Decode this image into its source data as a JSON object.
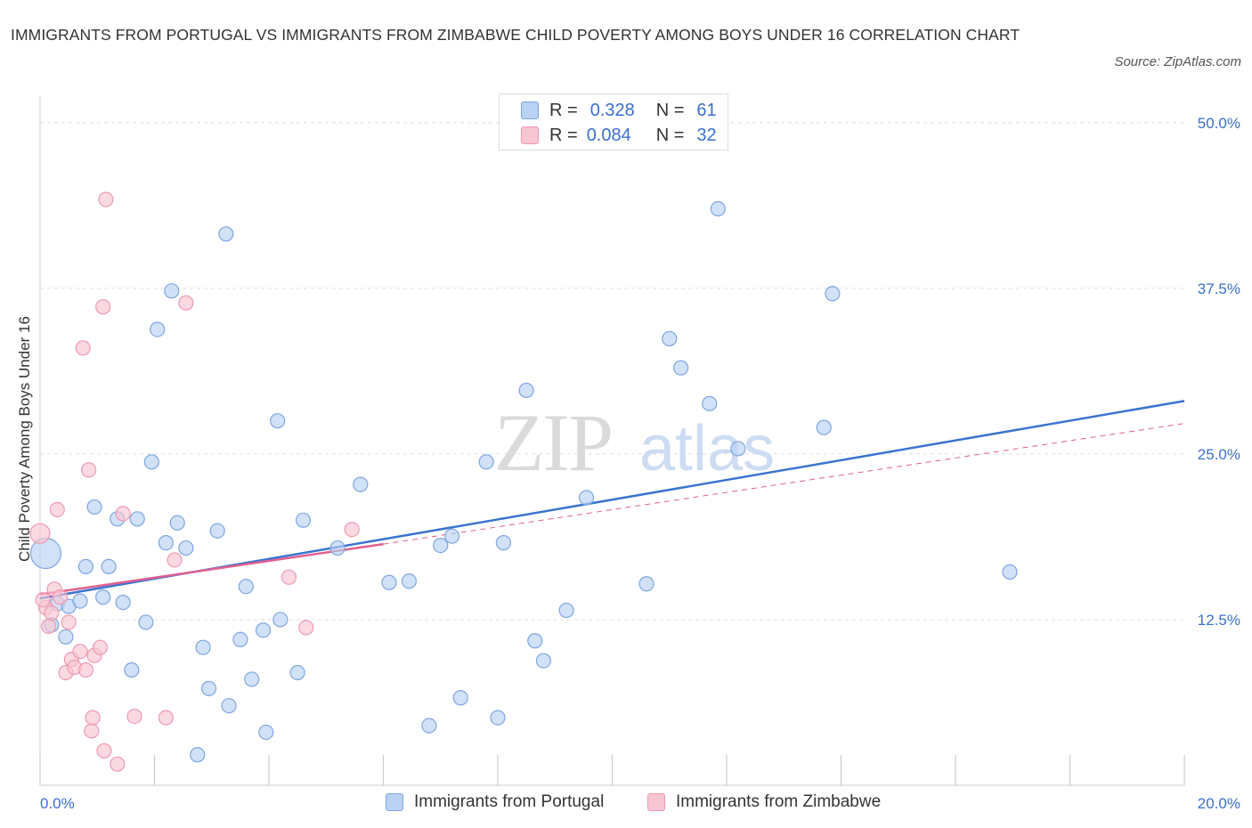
{
  "title": "IMMIGRANTS FROM PORTUGAL VS IMMIGRANTS FROM ZIMBABWE CHILD POVERTY AMONG BOYS UNDER 16 CORRELATION CHART",
  "source": "Source: ZipAtlas.com",
  "watermark": {
    "zip": "ZIP",
    "atlas": "atlas"
  },
  "legend": {
    "r_label": "R =",
    "n_label": "N =",
    "rows": [
      {
        "r": "0.328",
        "n": "61"
      },
      {
        "r": "0.084",
        "n": "32"
      }
    ]
  },
  "colors": {
    "portugal_fill": "#b9d1f2",
    "portugal_stroke": "#7ea6e0",
    "portugal_line": "#3a74d0",
    "zimbabwe_fill": "#f7c5d3",
    "zimbabwe_stroke": "#ee9ab2",
    "zimbabwe_line": "#e06090",
    "axis_text": "#3a6fd0",
    "grid": "#dddddd"
  },
  "chart_data": {
    "type": "scatter",
    "title": "IMMIGRANTS FROM PORTUGAL VS IMMIGRANTS FROM ZIMBABWE CHILD POVERTY AMONG BOYS UNDER 16 CORRELATION CHART",
    "xlabel": "",
    "ylabel": "Child Poverty Among Boys Under 16",
    "xlim": [
      0,
      20
    ],
    "ylim": [
      0,
      52
    ],
    "x_tick_labels": [
      "0.0%",
      "20.0%"
    ],
    "y_ticks": [
      12.5,
      25.0,
      37.5,
      50.0
    ],
    "y_tick_labels": [
      "12.5%",
      "25.0%",
      "37.5%",
      "50.0%"
    ],
    "grid": true,
    "legend_position": "bottom",
    "series": [
      {
        "name": "Immigrants from Portugal",
        "r": 0.328,
        "n": 61,
        "trend": {
          "x": [
            0,
            20
          ],
          "y": [
            14.1,
            29.0
          ]
        },
        "points": [
          [
            0.1,
            17.5,
            4
          ],
          [
            0.2,
            12.1,
            1
          ],
          [
            0.3,
            13.7,
            1
          ],
          [
            0.45,
            11.2,
            1
          ],
          [
            0.5,
            13.5,
            1
          ],
          [
            0.7,
            13.9,
            1
          ],
          [
            0.8,
            16.5,
            1
          ],
          [
            0.95,
            21.0,
            1
          ],
          [
            1.1,
            14.2,
            1
          ],
          [
            1.2,
            16.5,
            1
          ],
          [
            1.35,
            20.1,
            1
          ],
          [
            1.45,
            13.8,
            1
          ],
          [
            1.6,
            8.7,
            1
          ],
          [
            1.7,
            20.1,
            1
          ],
          [
            1.85,
            12.3,
            1
          ],
          [
            1.95,
            24.4,
            1
          ],
          [
            2.05,
            34.4,
            1
          ],
          [
            2.2,
            18.3,
            1
          ],
          [
            2.3,
            37.3,
            1
          ],
          [
            2.4,
            19.8,
            1
          ],
          [
            2.55,
            17.9,
            1
          ],
          [
            2.75,
            2.3,
            1
          ],
          [
            2.85,
            10.4,
            1
          ],
          [
            2.95,
            7.3,
            1
          ],
          [
            3.1,
            19.2,
            1
          ],
          [
            3.25,
            41.6,
            1
          ],
          [
            3.3,
            6.0,
            1
          ],
          [
            3.5,
            11.0,
            1
          ],
          [
            3.6,
            15.0,
            1
          ],
          [
            3.7,
            8.0,
            1
          ],
          [
            3.9,
            11.7,
            1
          ],
          [
            3.95,
            4.0,
            1
          ],
          [
            4.15,
            27.5,
            1
          ],
          [
            4.2,
            12.5,
            1
          ],
          [
            4.5,
            8.5,
            1
          ],
          [
            4.6,
            20.0,
            1
          ],
          [
            5.2,
            17.9,
            1
          ],
          [
            5.6,
            22.7,
            1
          ],
          [
            6.1,
            15.3,
            1
          ],
          [
            6.45,
            15.4,
            1
          ],
          [
            6.8,
            4.5,
            1
          ],
          [
            7.0,
            18.1,
            1
          ],
          [
            7.2,
            18.8,
            1
          ],
          [
            7.35,
            6.6,
            1
          ],
          [
            7.8,
            24.4,
            1
          ],
          [
            8.0,
            5.1,
            1
          ],
          [
            8.1,
            18.3,
            1
          ],
          [
            8.5,
            29.8,
            1
          ],
          [
            8.65,
            10.9,
            1
          ],
          [
            8.8,
            9.4,
            1
          ],
          [
            9.2,
            13.2,
            1
          ],
          [
            9.55,
            21.7,
            1
          ],
          [
            10.6,
            15.2,
            1
          ],
          [
            11.0,
            33.7,
            1
          ],
          [
            11.2,
            31.5,
            1
          ],
          [
            11.7,
            28.8,
            1
          ],
          [
            11.85,
            43.5,
            1
          ],
          [
            12.2,
            25.4,
            1
          ],
          [
            13.7,
            27.0,
            1
          ],
          [
            13.85,
            37.1,
            1
          ],
          [
            16.95,
            16.1,
            1
          ]
        ]
      },
      {
        "name": "Immigrants from Zimbabwe",
        "r": 0.084,
        "n": 32,
        "trend": {
          "x": [
            0,
            6.0
          ],
          "y": [
            14.4,
            18.2
          ]
        },
        "trend_dashed": {
          "x": [
            6.0,
            20.0
          ],
          "y": [
            18.2,
            27.3
          ]
        },
        "points": [
          [
            0.0,
            19.0,
            2
          ],
          [
            0.1,
            13.4,
            1
          ],
          [
            0.15,
            12.0,
            1
          ],
          [
            0.2,
            13.0,
            1
          ],
          [
            0.25,
            14.8,
            1
          ],
          [
            0.3,
            20.8,
            1
          ],
          [
            0.35,
            14.2,
            1
          ],
          [
            0.45,
            8.5,
            1
          ],
          [
            0.5,
            12.3,
            1
          ],
          [
            0.55,
            9.5,
            1
          ],
          [
            0.6,
            8.9,
            1
          ],
          [
            0.7,
            10.1,
            1
          ],
          [
            0.75,
            33.0,
            1
          ],
          [
            0.8,
            8.7,
            1
          ],
          [
            0.85,
            23.8,
            1
          ],
          [
            0.9,
            4.1,
            1
          ],
          [
            0.92,
            5.1,
            1
          ],
          [
            0.95,
            9.8,
            1
          ],
          [
            1.05,
            10.4,
            1
          ],
          [
            1.1,
            36.1,
            1
          ],
          [
            1.12,
            2.6,
            1
          ],
          [
            1.15,
            44.2,
            1
          ],
          [
            1.35,
            1.6,
            1
          ],
          [
            1.45,
            20.5,
            1
          ],
          [
            1.65,
            5.2,
            1
          ],
          [
            2.2,
            5.1,
            1
          ],
          [
            2.35,
            17.0,
            1
          ],
          [
            2.55,
            36.4,
            1
          ],
          [
            4.35,
            15.7,
            1
          ],
          [
            4.65,
            11.9,
            1
          ],
          [
            5.45,
            19.3,
            1
          ],
          [
            0.05,
            14.0,
            1
          ]
        ]
      }
    ]
  },
  "bottom_legend": [
    "Immigrants from Portugal",
    "Immigrants from Zimbabwe"
  ]
}
